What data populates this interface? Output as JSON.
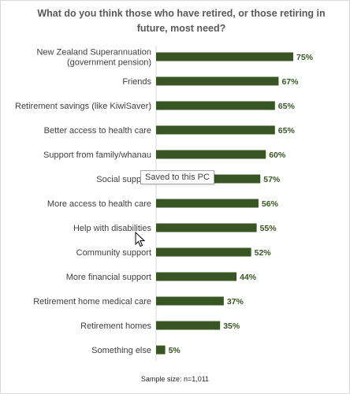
{
  "chart_data": {
    "type": "bar",
    "orientation": "horizontal",
    "title": "What do you think those who have retired, or those retiring in future, most need?",
    "categories": [
      "New Zealand Superannuation (government pension)",
      "Friends",
      "Retirement savings (like KiwiSaver)",
      "Better access to health care",
      "Support from family/whanau",
      "Social support",
      "More access to health care",
      "Help with disabilities",
      "Community support",
      "More financial support",
      "Retirement home medical care",
      "Retirement homes",
      "Something else"
    ],
    "category_lines": [
      [
        "New Zealand Superannuation",
        "(government pension)"
      ],
      [
        "Friends"
      ],
      [
        "Retirement savings (like KiwiSaver)"
      ],
      [
        "Better access to health care"
      ],
      [
        "Support from family/whanau"
      ],
      [
        "Social support"
      ],
      [
        "More access to health care"
      ],
      [
        "Help with disabilities"
      ],
      [
        "Community support"
      ],
      [
        "More financial support"
      ],
      [
        "Retirement home medical care"
      ],
      [
        "Retirement homes"
      ],
      [
        "Something else"
      ]
    ],
    "values": [
      75,
      67,
      65,
      65,
      60,
      57,
      56,
      55,
      52,
      44,
      37,
      35,
      5
    ],
    "value_labels": [
      "75%",
      "67%",
      "65%",
      "65%",
      "60%",
      "57%",
      "56%",
      "55%",
      "52%",
      "44%",
      "37%",
      "35%",
      "5%"
    ],
    "xlim": [
      0,
      100
    ],
    "grid": false,
    "bar_color": "#375623",
    "label_color": "#404040",
    "value_label_color": "#375623",
    "footnote": "Sample size: n=1,011"
  },
  "overlay": {
    "tooltip_text": "Saved to this PC",
    "cursor_icon": "mouse-pointer-icon"
  }
}
